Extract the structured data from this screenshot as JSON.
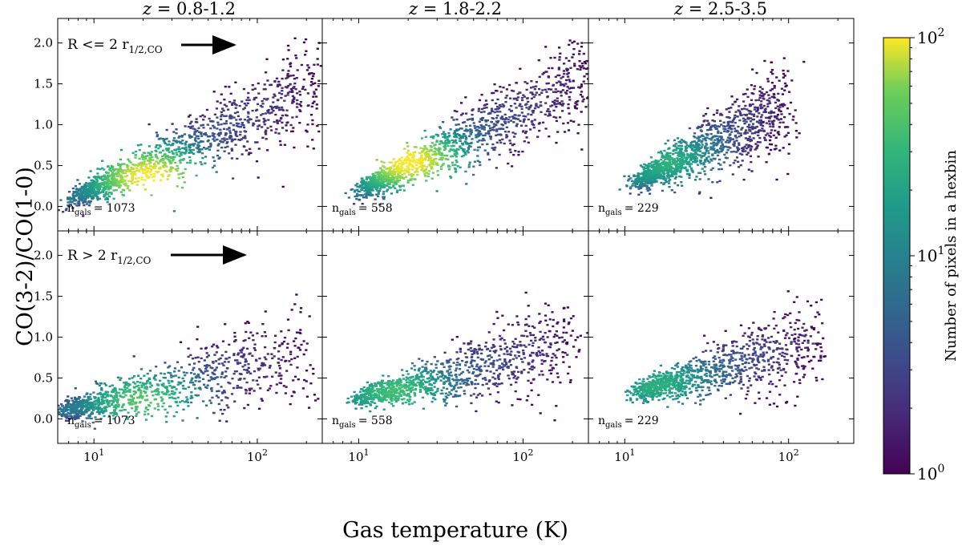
{
  "chart_data": {
    "type": "heatmap",
    "subtype": "hexbin-grid",
    "xlabel": "Gas temperature (K)",
    "ylabel": "CO(3-2)/CO(1-0)",
    "x_scale": "log",
    "xlim": [
      6,
      250
    ],
    "ylim": [
      -0.3,
      2.3
    ],
    "x_ticks": [
      {
        "value": 10,
        "label": "10",
        "exp": "1"
      },
      {
        "value": 100,
        "label": "10",
        "exp": "2"
      }
    ],
    "y_ticks": [
      0.0,
      0.5,
      1.0,
      1.5,
      2.0
    ],
    "y_tick_labels": [
      "0.0",
      "0.5",
      "1.0",
      "1.5",
      "2.0"
    ],
    "column_titles": [
      {
        "z": "z",
        "range": " = 0.8-1.2"
      },
      {
        "z": "z",
        "range": " = 1.8-2.2"
      },
      {
        "z": "z",
        "range": " = 2.5-3.5"
      }
    ],
    "row_annotations": [
      {
        "text": "R <= 2 r",
        "sub": "1/2,CO"
      },
      {
        "text": "R > 2 r",
        "sub": "1/2,CO"
      }
    ],
    "colorbar": {
      "label": "Number of pixels in a hexbin",
      "scale": "log",
      "range": [
        1,
        100
      ],
      "colormap": "viridis",
      "ticks": [
        {
          "base": "10",
          "exp": "0"
        },
        {
          "base": "10",
          "exp": "1"
        },
        {
          "base": "10",
          "exp": "2"
        }
      ]
    },
    "panels": [
      {
        "row": 0,
        "col": 0,
        "n_label": "n",
        "n_sub": "gals",
        "n_value": "= 1073",
        "ridge": {
          "t_start": 8,
          "r_start": 0.13,
          "slope": 0.9,
          "t_end": 250
        },
        "core": {
          "t": 22,
          "r": 0.35,
          "peak": 100
        }
      },
      {
        "row": 0,
        "col": 1,
        "n_label": "n",
        "n_sub": "gals",
        "n_value": "= 558",
        "ridge": {
          "t_start": 11,
          "r_start": 0.22,
          "slope": 1.0,
          "t_end": 250
        },
        "core": {
          "t": 20,
          "r": 0.55,
          "peak": 100
        }
      },
      {
        "row": 0,
        "col": 2,
        "n_label": "n",
        "n_sub": "gals",
        "n_value": "= 229",
        "ridge": {
          "t_start": 13,
          "r_start": 0.35,
          "slope": 1.0,
          "t_end": 100
        },
        "core": {
          "t": 18,
          "r": 0.55,
          "peak": 20
        }
      },
      {
        "row": 1,
        "col": 0,
        "n_label": "n",
        "n_sub": "gals",
        "n_value": "= 1073",
        "ridge": {
          "t_start": 7,
          "r_start": 0.12,
          "slope": 0.45,
          "t_end": 200
        },
        "core": {
          "t": 20,
          "r": 0.2,
          "peak": 40
        }
      },
      {
        "row": 1,
        "col": 1,
        "n_label": "n",
        "n_sub": "gals",
        "n_value": "= 558",
        "ridge": {
          "t_start": 11,
          "r_start": 0.28,
          "slope": 0.5,
          "t_end": 200
        },
        "core": {
          "t": 17,
          "r": 0.32,
          "peak": 30
        }
      },
      {
        "row": 1,
        "col": 2,
        "n_label": "n",
        "n_sub": "gals",
        "n_value": "= 229",
        "ridge": {
          "t_start": 13,
          "r_start": 0.35,
          "slope": 0.55,
          "t_end": 150
        },
        "core": {
          "t": 16,
          "r": 0.42,
          "peak": 20
        }
      }
    ]
  }
}
